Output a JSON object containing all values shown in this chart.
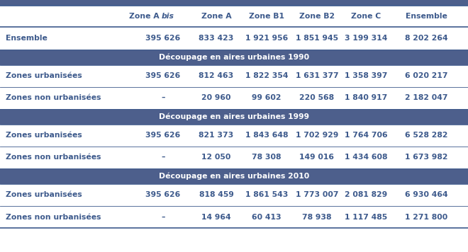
{
  "headers": [
    "Zone A bis",
    "Zone A",
    "Zone B1",
    "Zone B2",
    "Zone C",
    "Ensemble"
  ],
  "row_ensemble": [
    "Ensemble",
    "395 626",
    "833 423",
    "1 921 956",
    "1 851 945",
    "3 199 314",
    "8 202 264"
  ],
  "section_1990": "Découpage en aires urbaines 1990",
  "rows_1990": [
    [
      "Zones urbanisées",
      "395 626",
      "812 463",
      "1 822 354",
      "1 631 377",
      "1 358 397",
      "6 020 217"
    ],
    [
      "Zones non urbanisées",
      "–",
      "20 960",
      "99 602",
      "220 568",
      "1 840 917",
      "2 182 047"
    ]
  ],
  "section_1999": "Découpage en aires urbaines 1999",
  "rows_1999": [
    [
      "Zones urbanisées",
      "395 626",
      "821 373",
      "1 843 648",
      "1 702 929",
      "1 764 706",
      "6 528 282"
    ],
    [
      "Zones non urbanisées",
      "–",
      "12 050",
      "78 308",
      "149 016",
      "1 434 608",
      "1 673 982"
    ]
  ],
  "section_2010": "Découpage en aires urbaines 2010",
  "rows_2010": [
    [
      "Zones urbanisées",
      "395 626",
      "818 459",
      "1 861 543",
      "1 773 007",
      "2 081 829",
      "6 930 464"
    ],
    [
      "Zones non urbanisées",
      "–",
      "14 964",
      "60 413",
      "78 938",
      "1 117 485",
      "1 271 800"
    ]
  ],
  "text_blue": "#3d5a8c",
  "section_bg": "#4d5f8c",
  "section_text": "#FFFFFF",
  "bg_color": "#FFFFFF",
  "line_color": "#3d5a8c",
  "font_size": 7.8,
  "top_bar_color": "#4d5f8c"
}
